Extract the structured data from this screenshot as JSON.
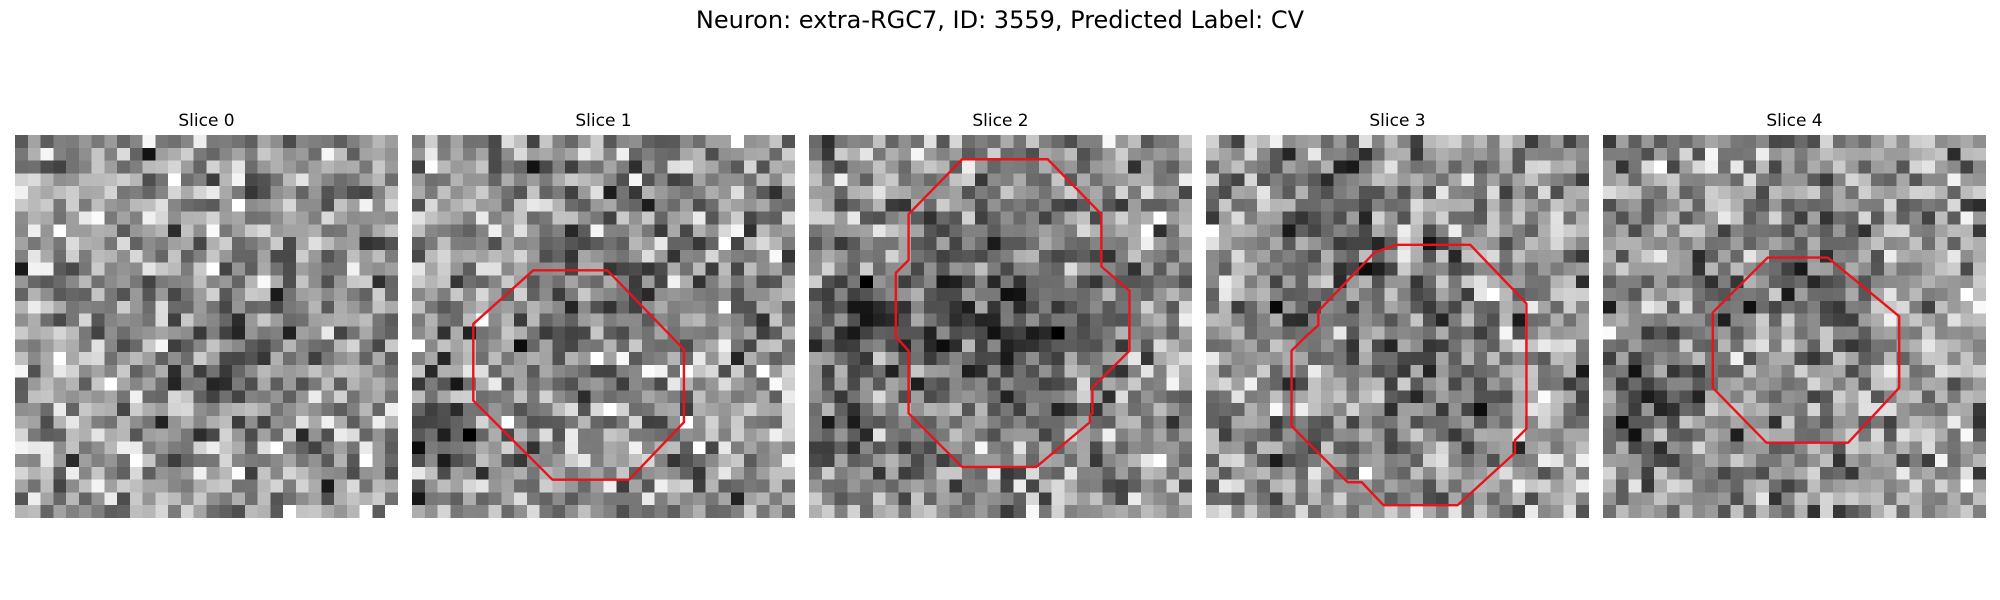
{
  "figure": {
    "title": "Neuron: extra-RGC7, ID: 3559, Predicted Label: CV"
  },
  "contour_color": "#e8131b",
  "image_grid": 30,
  "panels": [
    {
      "label": "Slice 0",
      "seed": 11,
      "mean": 150,
      "contrast": 48,
      "dark_blobs": [
        [
          17.5,
          16.5,
          5.0,
          45
        ]
      ],
      "contour": []
    },
    {
      "label": "Slice 1",
      "seed": 23,
      "mean": 152,
      "contrast": 50,
      "dark_blobs": [
        [
          14.5,
          12.0,
          6.5,
          50
        ],
        [
          1.5,
          23.5,
          3.5,
          65
        ]
      ],
      "contour": [
        [
          9.5,
          10.6
        ],
        [
          15.3,
          10.6
        ],
        [
          21.3,
          16.8
        ],
        [
          21.3,
          22.5
        ],
        [
          17.0,
          27.0
        ],
        [
          11.0,
          27.0
        ],
        [
          4.8,
          20.8
        ],
        [
          4.8,
          14.8
        ]
      ]
    },
    {
      "label": "Slice 2",
      "seed": 37,
      "mean": 148,
      "contrast": 45,
      "dark_blobs": [
        [
          15.0,
          14.5,
          8.5,
          65
        ],
        [
          3.5,
          14.0,
          4.0,
          70
        ],
        [
          2.5,
          24.0,
          3.0,
          45
        ]
      ],
      "contour": [
        [
          12.0,
          1.9
        ],
        [
          18.7,
          1.9
        ],
        [
          22.9,
          6.2
        ],
        [
          22.9,
          10.3
        ],
        [
          25.1,
          12.2
        ],
        [
          25.1,
          16.9
        ],
        [
          22.2,
          19.8
        ],
        [
          22.2,
          21.8
        ],
        [
          22.0,
          22.0
        ],
        [
          22.0,
          22.5
        ],
        [
          17.8,
          26.0
        ],
        [
          12.0,
          26.0
        ],
        [
          7.8,
          21.8
        ],
        [
          7.8,
          16.9
        ],
        [
          6.8,
          15.8
        ],
        [
          6.8,
          10.8
        ],
        [
          7.8,
          9.8
        ],
        [
          7.8,
          6.2
        ]
      ]
    },
    {
      "label": "Slice 3",
      "seed": 41,
      "mean": 152,
      "contrast": 46,
      "dark_blobs": [
        [
          16.0,
          18.5,
          8.0,
          40
        ],
        [
          10.0,
          6.0,
          5.5,
          45
        ],
        [
          7.0,
          14.5,
          3.0,
          40
        ]
      ],
      "contour": [
        [
          13.2,
          9.2
        ],
        [
          14.9,
          8.6
        ],
        [
          20.7,
          8.6
        ],
        [
          25.1,
          13.2
        ],
        [
          25.1,
          23.0
        ],
        [
          24.2,
          23.9
        ],
        [
          24.2,
          24.9
        ],
        [
          19.7,
          29.0
        ],
        [
          13.9,
          29.0
        ],
        [
          12.2,
          27.2
        ],
        [
          11.1,
          27.2
        ],
        [
          6.7,
          22.8
        ],
        [
          6.7,
          16.9
        ],
        [
          7.8,
          15.8
        ],
        [
          8.8,
          14.9
        ],
        [
          8.8,
          13.8
        ]
      ]
    },
    {
      "label": "Slice 4",
      "seed": 53,
      "mean": 152,
      "contrast": 45,
      "dark_blobs": [
        [
          15.5,
          11.5,
          6.0,
          40
        ],
        [
          3.5,
          20.0,
          4.0,
          70
        ]
      ],
      "contour": [
        [
          12.9,
          9.6
        ],
        [
          17.6,
          9.6
        ],
        [
          23.2,
          14.2
        ],
        [
          23.2,
          19.8
        ],
        [
          19.2,
          24.1
        ],
        [
          12.8,
          24.1
        ],
        [
          8.6,
          19.8
        ],
        [
          8.6,
          13.9
        ]
      ]
    }
  ]
}
